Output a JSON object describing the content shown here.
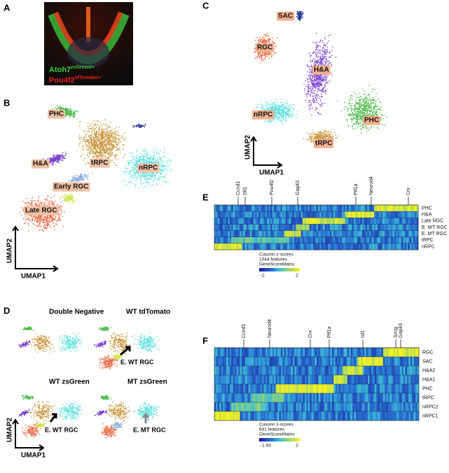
{
  "panels": {
    "a": {
      "label": "A",
      "markers": [
        {
          "gene": "Atoh7",
          "allele": "zsGreen/+"
        },
        {
          "gene": "Pou4f2",
          "allele": "tdTomato/+"
        }
      ]
    },
    "b": {
      "label": "B",
      "clusters": [
        "PHC",
        "H&A",
        "tRPC",
        "Early RGC",
        "nRPC",
        "Late RGC"
      ],
      "x_axis": "UMAP1",
      "y_axis": "UMAP2"
    },
    "c": {
      "label": "C",
      "clusters": [
        "SAC",
        "RGC",
        "H&A",
        "nRPC",
        "PHC",
        "tRPC"
      ],
      "x_axis": "UMAP1",
      "y_axis": "UMAP2"
    },
    "d": {
      "label": "D",
      "subpanels": [
        "Double Negative",
        "WT tdTomato",
        "WT zsGreen",
        "MT zsGreen"
      ],
      "annotations": [
        "E. WT RGC",
        "E. WT RGC",
        "E. MT RGC"
      ],
      "x_axis": "UMAP1",
      "y_axis": "UMAP2"
    },
    "e": {
      "label": "E",
      "genes": [
        "Ccnd1",
        "Dll1",
        "Pou4f2",
        "Gap43",
        "Ptf1a",
        "Neurod4",
        "Crx"
      ],
      "rows": [
        "PHC",
        "H&A",
        "Late RGC",
        "E. WT RGC",
        "E. MT RGC",
        "tRPC",
        "nRPC"
      ],
      "legend": {
        "title": "Column z-scores",
        "features": "1044  features",
        "matrix": "GeneScoreMatrix",
        "min": -2,
        "max": 2
      }
    },
    "f": {
      "label": "F",
      "genes": [
        "Ccnd1",
        "Neurod4",
        "Crx",
        "Ptf1a",
        "Isl1",
        "Sncg",
        "Gap43"
      ],
      "rows": [
        "RGC",
        "SAC",
        "H&A2",
        "H&A1",
        "PHC",
        "tRPC",
        "nRPC2",
        "nRPC1"
      ],
      "legend": {
        "title": "Column z-scores",
        "features": "641 features",
        "matrix": "GeneScoreMatrix",
        "min": -1.93,
        "max": 2
      }
    }
  }
}
